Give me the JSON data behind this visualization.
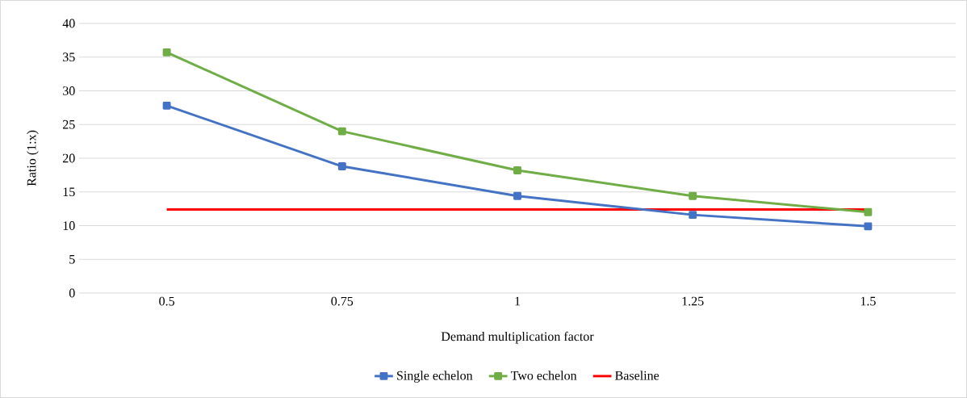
{
  "chart_data": {
    "type": "line",
    "xlabel": "Demand multiplication factor",
    "ylabel": "Ratio (1:x)",
    "categories": [
      "0.5",
      "0.75",
      "1",
      "1.25",
      "1.5"
    ],
    "ylim": [
      0,
      40
    ],
    "yticks": [
      0,
      5,
      10,
      15,
      20,
      25,
      30,
      35,
      40
    ],
    "grid": "y",
    "legend": "bottom",
    "series": [
      {
        "name": "Single echelon",
        "color": "#4472c4",
        "marker": "square",
        "values": [
          27.8,
          18.8,
          14.4,
          11.6,
          9.9
        ]
      },
      {
        "name": "Two echelon",
        "color": "#70ad47",
        "marker": "square",
        "values": [
          35.7,
          24.0,
          18.2,
          14.4,
          12.0
        ]
      },
      {
        "name": "Baseline",
        "color": "#ff0000",
        "marker": "none",
        "values": [
          12.4,
          12.4,
          12.4,
          12.4,
          12.4
        ]
      }
    ]
  }
}
